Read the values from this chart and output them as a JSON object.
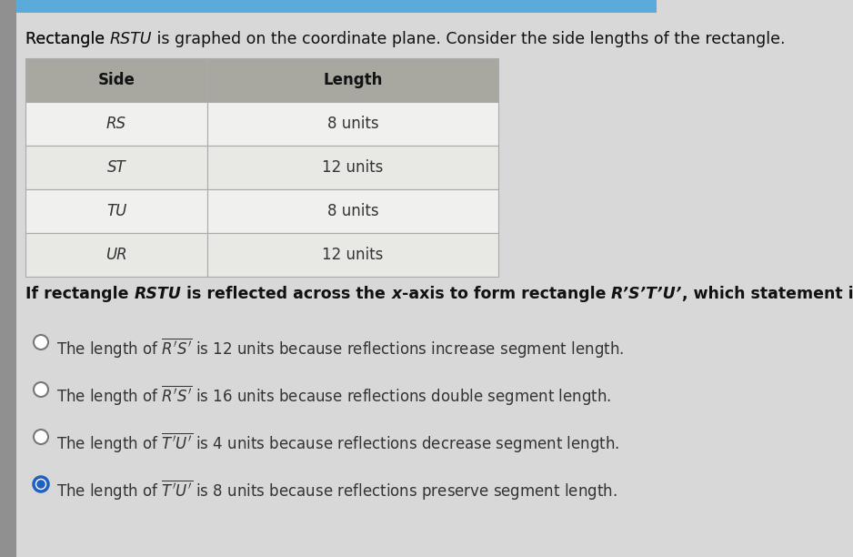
{
  "bg_color": "#d8d8d8",
  "left_strip_color": "#b0b0b0",
  "top_bar_color": "#5aabda",
  "top_bar_width": 0.77,
  "title_text_parts": [
    {
      "text": "Rectangle ",
      "style": "normal"
    },
    {
      "text": "RSTU",
      "style": "italic"
    },
    {
      "text": " is graphed on the coordinate plane. Consider the side lengths of the rectangle.",
      "style": "normal"
    }
  ],
  "table_header": [
    "Side",
    "Length"
  ],
  "table_rows": [
    [
      "RS",
      "8 units"
    ],
    [
      "ST",
      "12 units"
    ],
    [
      "TU",
      "8 units"
    ],
    [
      "UR",
      "12 units"
    ]
  ],
  "header_bg": "#a8a8a0",
  "row_bg": "#f0f0ee",
  "row_bg_alt": "#e8e8e5",
  "table_border_color": "#999999",
  "question_bold_parts": [
    {
      "text": "If rectangle ",
      "style": "bold"
    },
    {
      "text": "RSTU",
      "style": "bold_italic"
    },
    {
      "text": " is reflected across the ",
      "style": "bold"
    },
    {
      "text": "x",
      "style": "bold_italic"
    },
    {
      "text": "-axis to form rectangle ",
      "style": "bold"
    },
    {
      "text": "R’S’T’U’",
      "style": "bold_italic"
    },
    {
      "text": ", which statement is true?",
      "style": "bold"
    }
  ],
  "options": [
    "The length of ̅R’̅S’ is 12 units because reflections increase segment length.",
    "The length of ̅R’̅S’ is 16 units because reflections double segment length.",
    "The length of ̅T’̅U’ is 4 units because reflections decrease segment length.",
    "The length of ̅T’̅U’ is 8 units because reflections preserve segment length."
  ],
  "selected_option": 3,
  "radio_color_selected": "#2060c0",
  "option_text_color": "#333333",
  "title_fontsize": 12.5,
  "table_fontsize": 12,
  "question_fontsize": 12.5,
  "option_fontsize": 12
}
